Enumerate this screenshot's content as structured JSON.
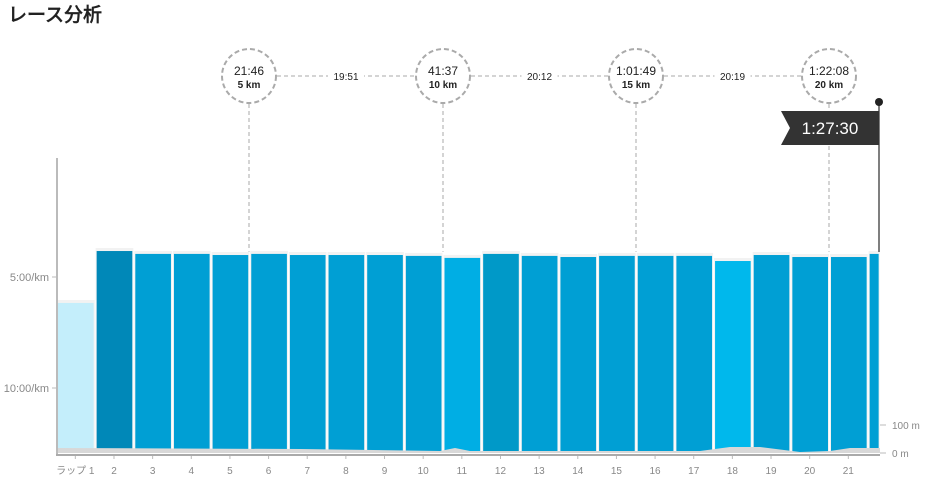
{
  "header": {
    "title": "レース分析"
  },
  "chart_data": {
    "type": "bar",
    "categories": [
      "ラップ 1",
      "2",
      "3",
      "4",
      "5",
      "6",
      "7",
      "8",
      "9",
      "10",
      "11",
      "12",
      "13",
      "14",
      "15",
      "16",
      "17",
      "18",
      "19",
      "20",
      "21",
      ""
    ],
    "values_min_per_km": [
      6.17,
      3.83,
      3.96,
      3.96,
      4.01,
      3.96,
      4.01,
      4.01,
      4.01,
      4.05,
      4.14,
      3.96,
      4.05,
      4.1,
      4.05,
      4.05,
      4.05,
      4.28,
      4.01,
      4.1,
      4.1,
      3.96
    ],
    "colors": [
      "#c4eefb",
      "#0088b8",
      "#009fd4",
      "#009fd4",
      "#009fd4",
      "#009fd4",
      "#009fd4",
      "#009fd4",
      "#009fd4",
      "#009fd4",
      "#00aee4",
      "#0099c8",
      "#009fd4",
      "#009fd4",
      "#009fd4",
      "#009fd4",
      "#009fd4",
      "#00b8ec",
      "#009fd4",
      "#009fd4",
      "#009fd4",
      "#009fd4"
    ],
    "y_ticks": [
      "5:00/km",
      "10:00/km"
    ],
    "elevation_ticks": [
      "100 m",
      "0 m"
    ],
    "splits": [
      {
        "time": "21:46",
        "dist": "5 km"
      },
      {
        "time": "41:37",
        "dist": "10 km"
      },
      {
        "time": "1:01:49",
        "dist": "15 km"
      },
      {
        "time": "1:22:08",
        "dist": "20 km"
      }
    ],
    "split_intervals": [
      "19:51",
      "20:12",
      "20:19"
    ],
    "finish_time": "1:27:30"
  }
}
